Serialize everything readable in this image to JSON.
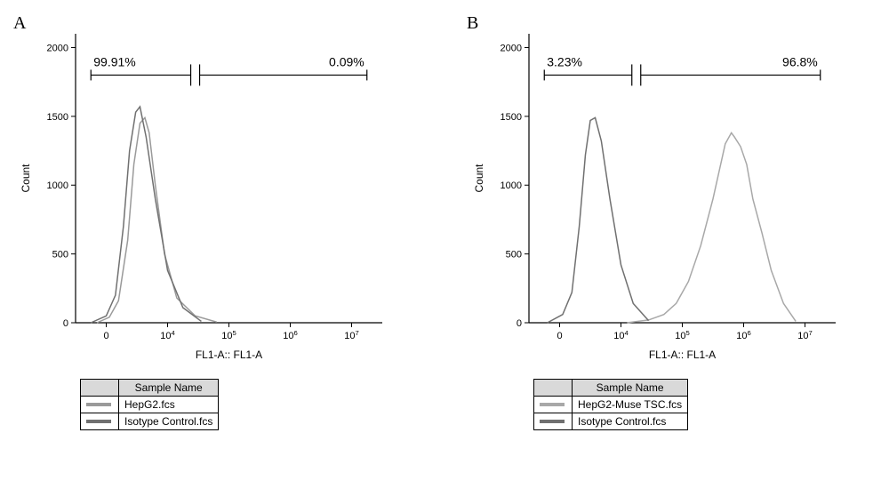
{
  "panels": [
    {
      "id": "A",
      "label": "A",
      "ylabel": "Count",
      "xlabel": "FL1-A:: FL1-A",
      "ylim": [
        0,
        2100
      ],
      "yticks": [
        0,
        500,
        1000,
        1500,
        2000
      ],
      "xlim_log": [
        2.5,
        7.5
      ],
      "xticks_log": [
        3,
        4,
        5,
        6,
        7
      ],
      "xtick_labels": [
        "0",
        "10^4",
        "10^5",
        "10^6",
        "10^7"
      ],
      "gate_split_log": 4.45,
      "gate_left_pct": "99.91%",
      "gate_right_pct": "0.09%",
      "gate_y": 1800,
      "label_fontsize": 14,
      "axis_fontsize": 12,
      "tick_fontsize": 11,
      "series": [
        {
          "name": "HepG2.fcs",
          "color": "#9a9a9a",
          "line_width": 1.5,
          "x_log": [
            2.85,
            3.05,
            3.2,
            3.35,
            3.45,
            3.55,
            3.63,
            3.7,
            3.8,
            3.95,
            4.15,
            4.45,
            4.8
          ],
          "y": [
            0,
            40,
            160,
            600,
            1150,
            1450,
            1490,
            1380,
            1000,
            500,
            180,
            50,
            5
          ]
        },
        {
          "name": "Isotype Control.fcs",
          "color": "#707070",
          "line_width": 1.5,
          "x_log": [
            2.75,
            3.0,
            3.15,
            3.28,
            3.38,
            3.48,
            3.55,
            3.65,
            3.8,
            4.0,
            4.25,
            4.55
          ],
          "y": [
            0,
            50,
            200,
            700,
            1250,
            1530,
            1570,
            1350,
            900,
            380,
            110,
            10
          ]
        }
      ],
      "legend_header": "Sample Name",
      "legend_rows": [
        {
          "swatch": "#9a9a9a",
          "text": "HepG2.fcs"
        },
        {
          "swatch": "#707070",
          "text": "Isotype Control.fcs"
        }
      ]
    },
    {
      "id": "B",
      "label": "B",
      "ylabel": "Count",
      "xlabel": "FL1-A:: FL1-A",
      "ylim": [
        0,
        2100
      ],
      "yticks": [
        0,
        500,
        1000,
        1500,
        2000
      ],
      "xlim_log": [
        2.5,
        7.5
      ],
      "xticks_log": [
        3,
        4,
        5,
        6,
        7
      ],
      "xtick_labels": [
        "0",
        "10^4",
        "10^5",
        "10^6",
        "10^7"
      ],
      "gate_split_log": 4.25,
      "gate_left_pct": "3.23%",
      "gate_right_pct": "96.8%",
      "gate_y": 1800,
      "label_fontsize": 14,
      "axis_fontsize": 12,
      "tick_fontsize": 11,
      "series": [
        {
          "name": "HepG2-Muse TSC.fcs",
          "color": "#a8a8a8",
          "line_width": 1.5,
          "x_log": [
            4.1,
            4.45,
            4.7,
            4.9,
            5.1,
            5.3,
            5.5,
            5.6,
            5.7,
            5.8,
            5.85,
            5.95,
            6.05,
            6.15,
            6.3,
            6.45,
            6.65,
            6.85
          ],
          "y": [
            0,
            20,
            60,
            140,
            300,
            560,
            900,
            1100,
            1300,
            1380,
            1350,
            1280,
            1150,
            900,
            650,
            380,
            140,
            10
          ]
        },
        {
          "name": "Isotype Control.fcs",
          "color": "#707070",
          "line_width": 1.5,
          "x_log": [
            2.8,
            3.05,
            3.2,
            3.32,
            3.42,
            3.5,
            3.58,
            3.68,
            3.82,
            4.0,
            4.2,
            4.45
          ],
          "y": [
            0,
            60,
            220,
            700,
            1220,
            1470,
            1490,
            1320,
            900,
            420,
            140,
            15
          ]
        }
      ],
      "legend_header": "Sample Name",
      "legend_rows": [
        {
          "swatch": "#a8a8a8",
          "text": "HepG2-Muse TSC.fcs"
        },
        {
          "swatch": "#707070",
          "text": "Isotype Control.fcs"
        }
      ]
    }
  ],
  "colors": {
    "axis": "#000000",
    "background": "#ffffff"
  }
}
